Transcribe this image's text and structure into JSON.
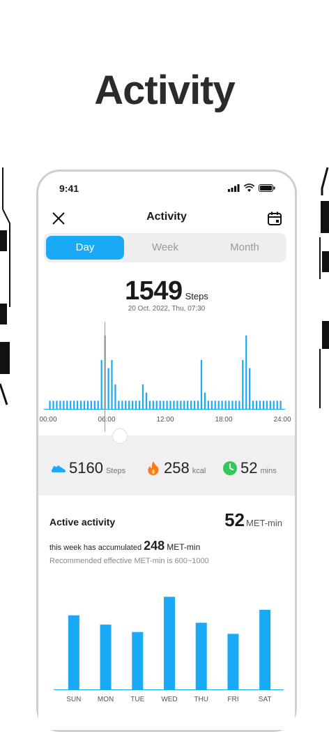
{
  "headline": "Activity",
  "status_bar": {
    "time": "9:41"
  },
  "nav": {
    "title": "Activity",
    "close_icon": "close-icon",
    "calendar_icon": "calendar-icon"
  },
  "tabs": [
    {
      "label": "Day",
      "active": true
    },
    {
      "label": "Week",
      "active": false
    },
    {
      "label": "Month",
      "active": false
    }
  ],
  "summary": {
    "steps": "1549",
    "steps_unit": "Steps",
    "datetime": "20 Oct. 2022, Thu, 07:30"
  },
  "stats": {
    "steps": {
      "value": "5160",
      "unit": "Steps",
      "icon": "shoe-icon"
    },
    "calories": {
      "value": "258",
      "unit": "kcal",
      "icon": "flame-icon"
    },
    "minutes": {
      "value": "52",
      "unit": "mins",
      "icon": "clock-icon"
    }
  },
  "active": {
    "title": "Active activity",
    "met_value": "52",
    "met_unit": "MET-min",
    "accumulated_prefix": "this week has accumulated",
    "accumulated_value": "248",
    "accumulated_unit": "MET-min",
    "recommendation": "Recommended effective MET-min is 600~1000"
  },
  "colors": {
    "accent": "#1aaaf5",
    "flame": "#ff7a1a",
    "clock": "#34c759"
  },
  "chart_data": [
    {
      "type": "bar",
      "x_ticks": [
        "00:00",
        "06:00",
        "12:00",
        "18:00",
        "24:00"
      ],
      "values": [
        1,
        1,
        1,
        1,
        1,
        1,
        1,
        1,
        1,
        1,
        1,
        1,
        1,
        1,
        1,
        6,
        9,
        5,
        6,
        3,
        1,
        1,
        1,
        1,
        1,
        1,
        1,
        3,
        2,
        1,
        1,
        1,
        1,
        1,
        1,
        1,
        1,
        1,
        1,
        1,
        1,
        1,
        1,
        1,
        6,
        2,
        1,
        1,
        1,
        1,
        1,
        1,
        1,
        1,
        1,
        1,
        6,
        9,
        5,
        1,
        1,
        1,
        1,
        1,
        1,
        1,
        1,
        1
      ],
      "selected_index": 16,
      "ylim": [
        0,
        10
      ]
    },
    {
      "type": "bar",
      "categories": [
        "SUN",
        "MON",
        "TUE",
        "WED",
        "THU",
        "FRI",
        "SAT"
      ],
      "values": [
        40,
        35,
        31,
        50,
        36,
        30,
        43
      ],
      "ylim": [
        0,
        55
      ]
    }
  ]
}
